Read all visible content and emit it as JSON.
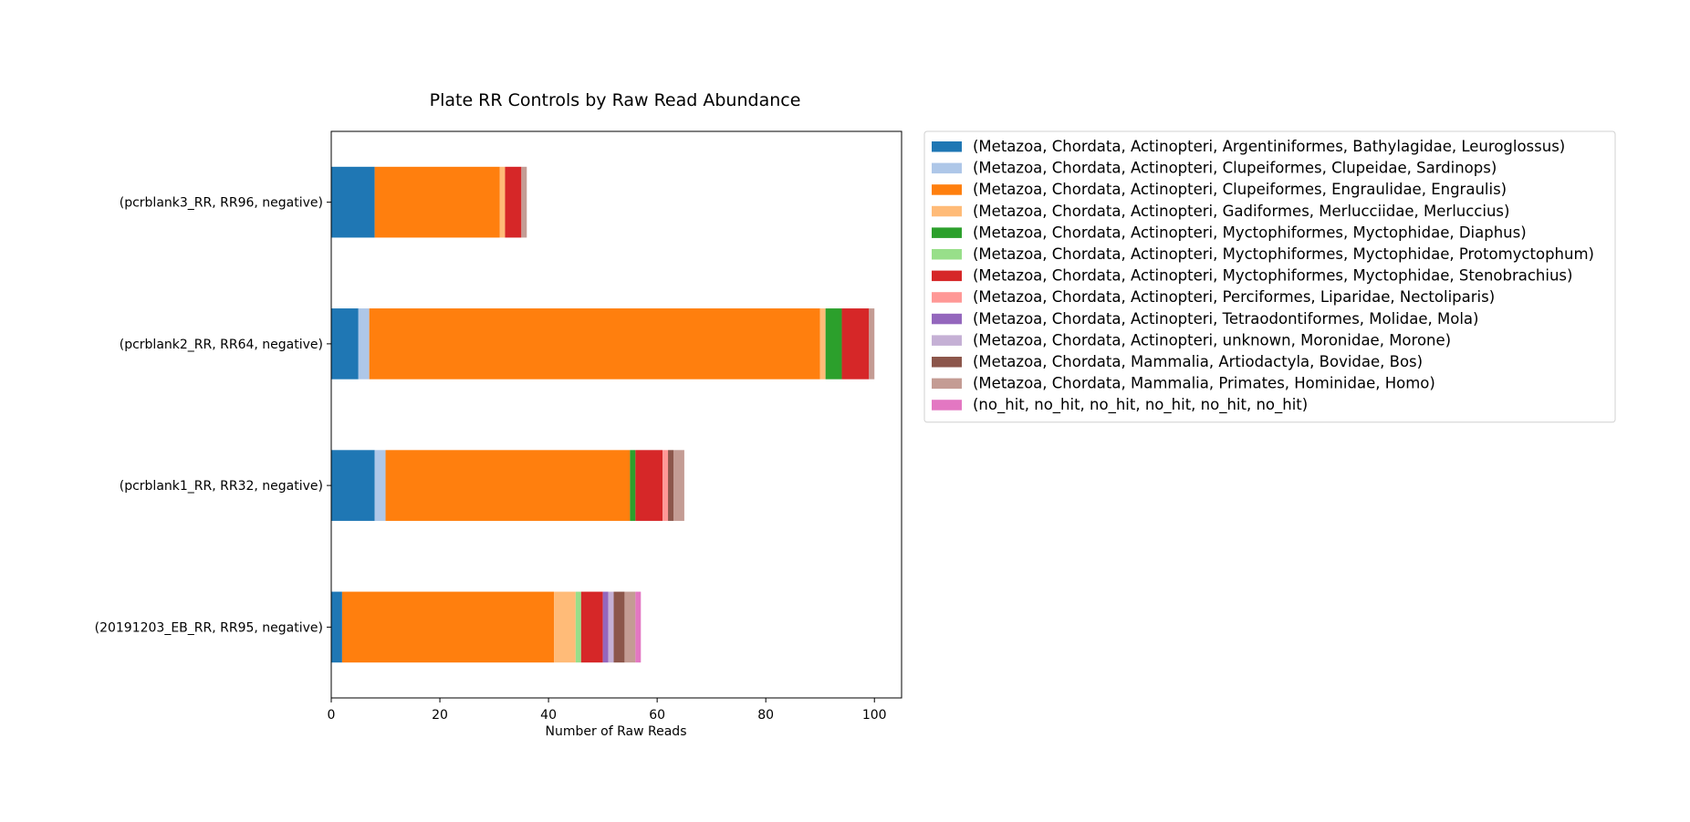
{
  "chart_data": {
    "type": "bar",
    "orientation": "horizontal",
    "stacked": true,
    "title": "Plate RR Controls by Raw Read Abundance",
    "xlabel": "Number of Raw Reads",
    "ylabel": "",
    "xlim": [
      0,
      105
    ],
    "xticks": [
      "0",
      "20",
      "40",
      "60",
      "80",
      "100"
    ],
    "grid": false,
    "legend_position": "outside-right-top",
    "categories": [
      "(pcrblank3_RR, RR96, negative)",
      "(pcrblank2_RR, RR64, negative)",
      "(pcrblank1_RR, RR32, negative)",
      "(20191203_EB_RR, RR95, negative)"
    ],
    "series": [
      {
        "name": "(Metazoa, Chordata, Actinopteri, Argentiniformes, Bathylagidae, Leuroglossus)",
        "color": "#1f77b4",
        "values": [
          8,
          5,
          8,
          2
        ]
      },
      {
        "name": "(Metazoa, Chordata, Actinopteri, Clupeiformes, Clupeidae, Sardinops)",
        "color": "#aec7e8",
        "values": [
          0,
          2,
          2,
          0
        ]
      },
      {
        "name": "(Metazoa, Chordata, Actinopteri, Clupeiformes, Engraulidae, Engraulis)",
        "color": "#ff7f0e",
        "values": [
          23,
          83,
          45,
          39
        ]
      },
      {
        "name": "(Metazoa, Chordata, Actinopteri, Gadiformes, Merlucciidae, Merluccius)",
        "color": "#ffbb78",
        "values": [
          1,
          1,
          0,
          4
        ]
      },
      {
        "name": "(Metazoa, Chordata, Actinopteri, Myctophiformes, Myctophidae, Diaphus)",
        "color": "#2ca02c",
        "values": [
          0,
          3,
          1,
          0
        ]
      },
      {
        "name": "(Metazoa, Chordata, Actinopteri, Myctophiformes, Myctophidae, Protomyctophum)",
        "color": "#98df8a",
        "values": [
          0,
          0,
          0,
          1
        ]
      },
      {
        "name": "(Metazoa, Chordata, Actinopteri, Myctophiformes, Myctophidae, Stenobrachius)",
        "color": "#d62728",
        "values": [
          3,
          5,
          5,
          4
        ]
      },
      {
        "name": "(Metazoa, Chordata, Actinopteri, Perciformes, Liparidae, Nectoliparis)",
        "color": "#ff9896",
        "values": [
          0,
          0,
          1,
          0
        ]
      },
      {
        "name": "(Metazoa, Chordata, Actinopteri, Tetraodontiformes, Molidae, Mola)",
        "color": "#9467bd",
        "values": [
          0,
          0,
          0,
          1
        ]
      },
      {
        "name": "(Metazoa, Chordata, Actinopteri, unknown, Moronidae, Morone)",
        "color": "#c5b0d5",
        "values": [
          0,
          0,
          0,
          1
        ]
      },
      {
        "name": "(Metazoa, Chordata, Mammalia, Artiodactyla, Bovidae, Bos)",
        "color": "#8c564b",
        "values": [
          0,
          0,
          1,
          2
        ]
      },
      {
        "name": "(Metazoa, Chordata, Mammalia, Primates, Hominidae, Homo)",
        "color": "#c49c94",
        "values": [
          1,
          1,
          2,
          2
        ]
      },
      {
        "name": "(no_hit, no_hit, no_hit, no_hit, no_hit, no_hit)",
        "color": "#e377c2",
        "values": [
          0,
          0,
          0,
          1
        ]
      }
    ]
  }
}
